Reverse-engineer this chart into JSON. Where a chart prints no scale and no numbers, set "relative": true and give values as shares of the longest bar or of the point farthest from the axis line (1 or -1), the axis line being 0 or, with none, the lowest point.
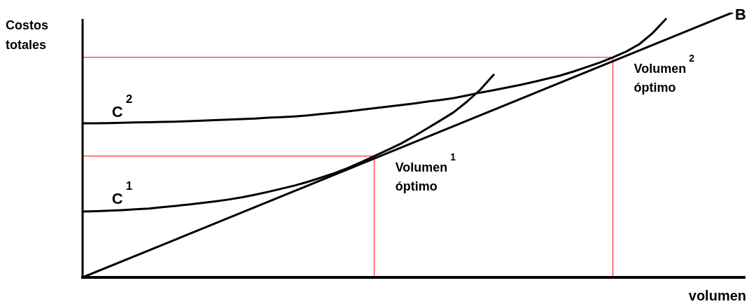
{
  "chart_data": {
    "type": "line",
    "relative": true,
    "ylabel": "Costos\ntotales",
    "xlabel": "volumen",
    "categories": [
      null,
      null,
      null,
      null,
      null,
      null,
      null,
      null,
      null,
      null,
      null,
      null,
      null,
      null,
      null,
      null,
      null,
      null,
      null,
      null,
      null,
      null,
      null,
      null,
      null,
      null,
      null,
      null,
      null,
      null,
      null,
      null,
      null,
      null,
      null,
      null,
      null,
      null,
      null,
      null,
      null,
      null,
      null,
      null,
      null,
      null,
      null,
      null,
      null,
      null,
      null
    ],
    "series": [
      {
        "name": "B",
        "color": "#000000",
        "values": [
          0,
          null,
          null,
          null,
          null,
          null,
          null,
          null,
          null,
          null,
          null,
          null,
          null,
          null,
          null,
          null,
          null,
          null,
          null,
          null,
          null,
          null,
          null,
          null,
          null,
          null,
          null,
          null,
          null,
          null,
          null,
          null,
          null,
          null,
          null,
          null,
          null,
          null,
          null,
          null,
          null,
          null,
          null,
          null,
          null,
          null,
          null,
          null,
          null,
          1,
          null
        ]
      },
      {
        "name": "C$^{1}$",
        "color": "#000000",
        "values": [
          0.249,
          0.25,
          0.252,
          0.254,
          0.257,
          0.26,
          0.265,
          0.27,
          0.275,
          0.281,
          0.287,
          0.294,
          0.302,
          0.312,
          0.323,
          0.335,
          0.347,
          0.361,
          0.377,
          0.394,
          0.413,
          0.435,
          0.458,
          0.481,
          0.505,
          0.533,
          0.563,
          0.593,
          0.624,
          0.664,
          0.709,
          0.765,
          null,
          null,
          null,
          null,
          null,
          null,
          null,
          null,
          null,
          null,
          null,
          null,
          null,
          null,
          null,
          null,
          null,
          null,
          null
        ]
      },
      {
        "name": "C$^{2}$",
        "color": "#000000",
        "values": [
          0.582,
          0.582,
          0.583,
          0.584,
          0.585,
          0.586,
          0.587,
          0.588,
          0.59,
          0.592,
          0.594,
          0.596,
          0.598,
          0.6,
          0.603,
          0.605,
          0.608,
          0.612,
          0.617,
          0.622,
          0.627,
          0.633,
          0.639,
          0.645,
          0.651,
          0.657,
          0.664,
          0.67,
          0.677,
          0.687,
          0.698,
          0.707,
          0.717,
          0.727,
          0.738,
          0.75,
          0.762,
          0.777,
          0.794,
          0.811,
          0.831,
          0.853,
          0.881,
          0.923,
          0.976,
          null,
          null,
          null,
          null,
          null,
          null
        ]
      }
    ],
    "ref_lines": [
      {
        "axis": "y",
        "value": 0.458,
        "label": "Volumen$^{1}$\nóptimo",
        "color": "#ff0000"
      },
      {
        "axis": "y",
        "value": 0.831,
        "label": "Volumen$^{2}$\nóptimo",
        "color": "#ff0000"
      }
    ]
  }
}
